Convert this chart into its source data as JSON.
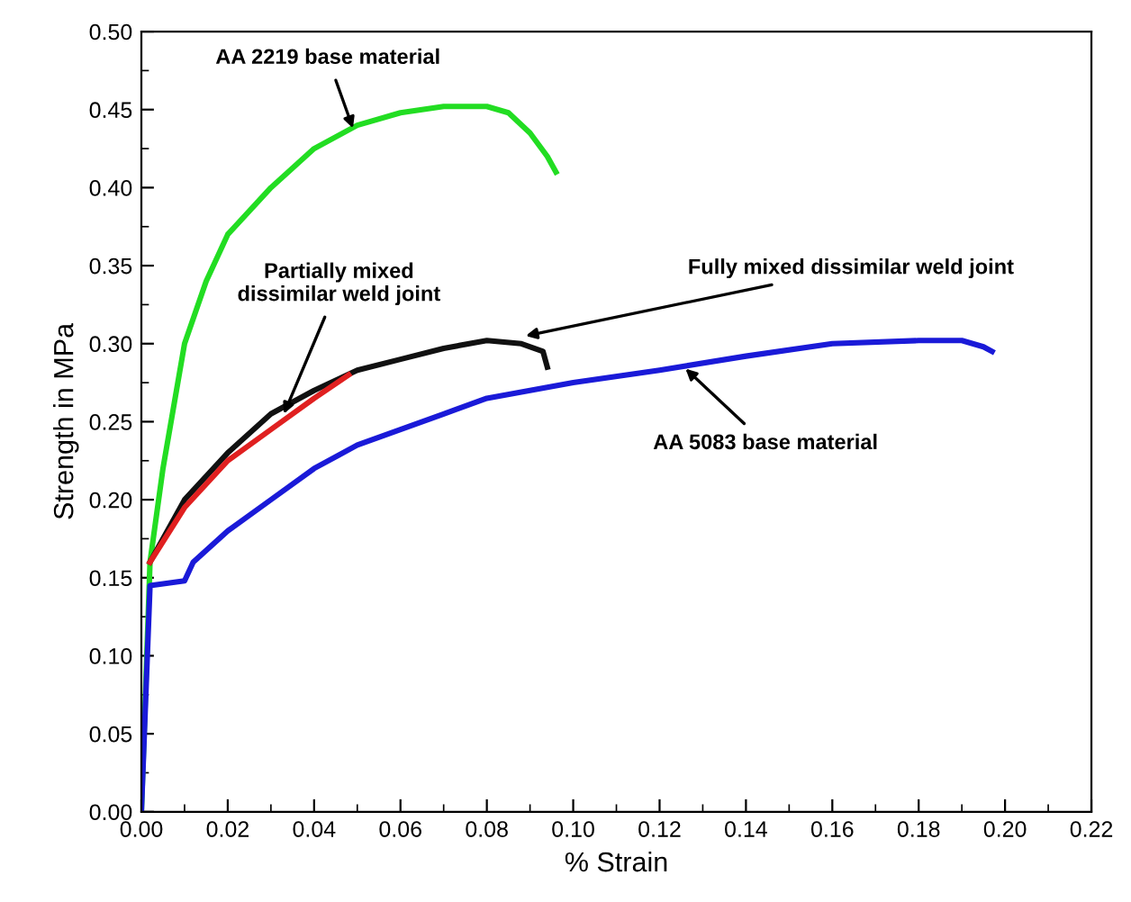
{
  "chart_data": {
    "type": "line",
    "xlabel": "% Strain",
    "ylabel": "Strength in MPa",
    "xlim": [
      0,
      0.22
    ],
    "ylim": [
      0,
      0.5
    ],
    "xticks": [
      {
        "value": 0,
        "label": "0.00"
      },
      {
        "value": 0.02,
        "label": "0.02"
      },
      {
        "value": 0.04,
        "label": "0.04"
      },
      {
        "value": 0.06,
        "label": "0.06"
      },
      {
        "value": 0.08,
        "label": "0.08"
      },
      {
        "value": 0.1,
        "label": "0.10"
      },
      {
        "value": 0.12,
        "label": "0.12"
      },
      {
        "value": 0.14,
        "label": "0.14"
      },
      {
        "value": 0.16,
        "label": "0.16"
      },
      {
        "value": 0.18,
        "label": "0.18"
      },
      {
        "value": 0.2,
        "label": "0.20"
      },
      {
        "value": 0.22,
        "label": "0.22"
      }
    ],
    "yticks": [
      {
        "value": 0,
        "label": "0.00"
      },
      {
        "value": 0.05,
        "label": "0.05"
      },
      {
        "value": 0.1,
        "label": "0.10"
      },
      {
        "value": 0.15,
        "label": "0.15"
      },
      {
        "value": 0.2,
        "label": "0.20"
      },
      {
        "value": 0.25,
        "label": "0.25"
      },
      {
        "value": 0.3,
        "label": "0.30"
      },
      {
        "value": 0.35,
        "label": "0.35"
      },
      {
        "value": 0.4,
        "label": "0.40"
      },
      {
        "value": 0.45,
        "label": "0.45"
      },
      {
        "value": 0.5,
        "label": "0.50"
      }
    ],
    "grid": false,
    "marker": "none",
    "line_style": "solid",
    "series": [
      {
        "color": "#22dd22",
        "x": [
          0,
          0.002,
          0.005,
          0.01,
          0.015,
          0.02,
          0.03,
          0.04,
          0.05,
          0.06,
          0.07,
          0.08,
          0.085,
          0.09,
          0.094,
          0.096
        ],
        "values": [
          0,
          0.16,
          0.22,
          0.3,
          0.34,
          0.37,
          0.4,
          0.425,
          0.44,
          0.448,
          0.452,
          0.452,
          0.448,
          0.435,
          0.42,
          0.41
        ]
      },
      {
        "color": "#111111",
        "x": [
          0.002,
          0.01,
          0.02,
          0.03,
          0.04,
          0.05,
          0.06,
          0.07,
          0.08,
          0.088,
          0.093,
          0.094
        ],
        "values": [
          0.16,
          0.2,
          0.23,
          0.255,
          0.27,
          0.283,
          0.29,
          0.297,
          0.302,
          0.3,
          0.295,
          0.285
        ]
      },
      {
        "color": "#e02020",
        "x": [
          0.002,
          0.01,
          0.02,
          0.03,
          0.04,
          0.048
        ],
        "values": [
          0.16,
          0.195,
          0.225,
          0.245,
          0.265,
          0.28
        ]
      },
      {
        "color": "#1a1ad8",
        "x": [
          0,
          0.002,
          0.01,
          0.012,
          0.02,
          0.03,
          0.04,
          0.05,
          0.06,
          0.07,
          0.08,
          0.09,
          0.1,
          0.12,
          0.14,
          0.16,
          0.18,
          0.19,
          0.195,
          0.197
        ],
        "values": [
          0,
          0.145,
          0.148,
          0.16,
          0.18,
          0.2,
          0.22,
          0.235,
          0.245,
          0.255,
          0.265,
          0.27,
          0.275,
          0.283,
          0.292,
          0.3,
          0.302,
          0.302,
          0.298,
          0.295
        ]
      }
    ],
    "annotations": [
      {
        "text": "AA 2219 base material",
        "x": 0.049,
        "y": 0.438
      },
      {
        "text": "Partially mixed\ndissimilar weld joint",
        "x": 0.033,
        "y": 0.255
      },
      {
        "text": "Fully mixed dissimilar weld joint",
        "x": 0.089,
        "y": 0.305
      },
      {
        "text": "AA 5083 base material",
        "x": 0.126,
        "y": 0.284
      }
    ]
  }
}
